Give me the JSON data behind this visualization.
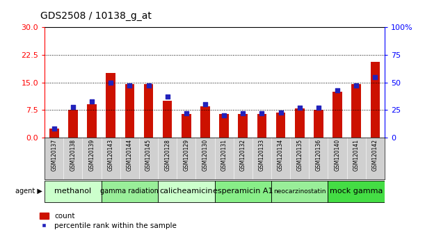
{
  "title": "GDS2508 / 10138_g_at",
  "samples": [
    "GSM120137",
    "GSM120138",
    "GSM120139",
    "GSM120143",
    "GSM120144",
    "GSM120145",
    "GSM120128",
    "GSM120129",
    "GSM120130",
    "GSM120131",
    "GSM120132",
    "GSM120133",
    "GSM120134",
    "GSM120135",
    "GSM120136",
    "GSM120140",
    "GSM120141",
    "GSM120142"
  ],
  "counts": [
    2.5,
    7.5,
    9.0,
    17.5,
    14.5,
    14.5,
    10.0,
    6.5,
    8.5,
    6.5,
    6.5,
    6.5,
    6.8,
    8.0,
    7.5,
    12.5,
    14.5,
    20.5
  ],
  "percentiles": [
    8,
    28,
    33,
    50,
    47,
    47,
    37,
    22,
    30,
    20,
    22,
    22,
    23,
    27,
    27,
    43,
    47,
    55
  ],
  "agents": [
    {
      "label": "methanol",
      "start": 0,
      "end": 3,
      "color": "#ccffcc"
    },
    {
      "label": "gamma radiation",
      "start": 3,
      "end": 6,
      "color": "#99ee99"
    },
    {
      "label": "calicheamicin",
      "start": 6,
      "end": 9,
      "color": "#ccffcc"
    },
    {
      "label": "esperamicin A1",
      "start": 9,
      "end": 12,
      "color": "#88ee88"
    },
    {
      "label": "neocarzinostatin",
      "start": 12,
      "end": 15,
      "color": "#99ee99"
    },
    {
      "label": "mock gamma",
      "start": 15,
      "end": 18,
      "color": "#44dd44"
    }
  ],
  "bar_color": "#cc1100",
  "dot_color": "#2222bb",
  "left_ylim": [
    0,
    30
  ],
  "right_ylim": [
    0,
    100
  ],
  "left_yticks": [
    0,
    7.5,
    15,
    22.5,
    30
  ],
  "right_yticks": [
    0,
    25,
    50,
    75,
    100
  ],
  "right_yticklabels": [
    "0",
    "25",
    "50",
    "75",
    "100%"
  ],
  "plot_bg": "#ffffff",
  "sample_area_color": "#d0d0d0",
  "title_fontsize": 10,
  "agent_fontsize_map": {
    "methanol": 8,
    "gamma radiation": 7,
    "calicheamicin": 8,
    "esperamicin A1": 8,
    "neocarzinostatin": 6.5,
    "mock gamma": 8
  }
}
